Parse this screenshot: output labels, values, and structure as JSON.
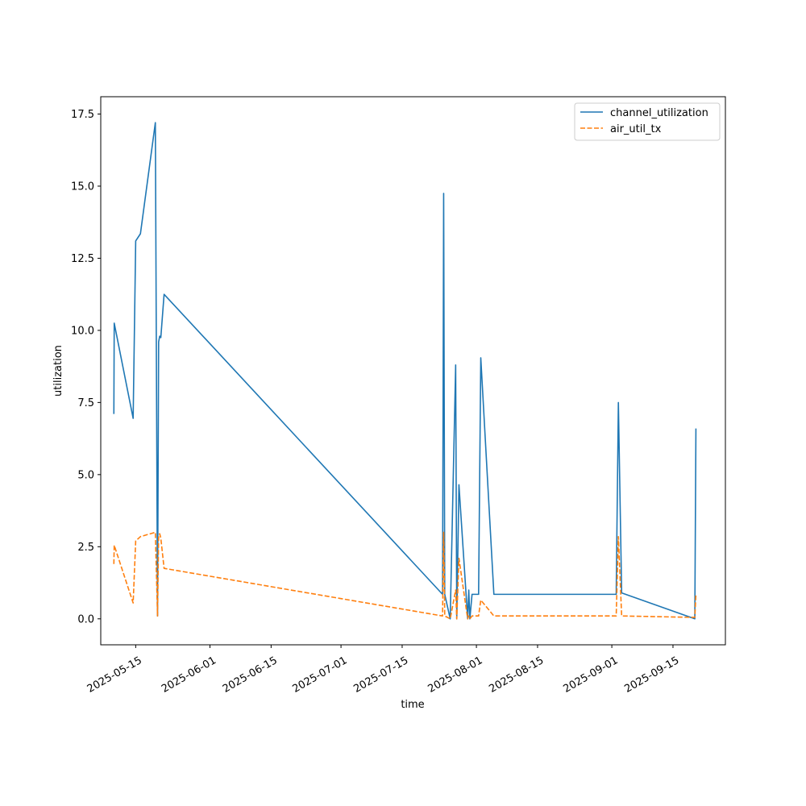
{
  "chart_data": {
    "type": "line",
    "title": "",
    "xlabel": "time",
    "ylabel": "utilization",
    "x_type": "date",
    "xlim": [
      "2025-05-07",
      "2025-09-27"
    ],
    "ylim": [
      -0.9,
      18.1
    ],
    "yticks": [
      0.0,
      2.5,
      5.0,
      7.5,
      10.0,
      12.5,
      15.0,
      17.5
    ],
    "ytick_labels": [
      "0.0",
      "2.5",
      "5.0",
      "7.5",
      "10.0",
      "12.5",
      "15.0",
      "17.5"
    ],
    "xticks": [
      "2025-05-15",
      "2025-06-01",
      "2025-06-15",
      "2025-07-01",
      "2025-07-15",
      "2025-08-01",
      "2025-08-15",
      "2025-09-01",
      "2025-09-15"
    ],
    "xtick_labels": [
      "2025-05-15",
      "2025-06-01",
      "2025-06-15",
      "2025-07-01",
      "2025-07-15",
      "2025-08-01",
      "2025-08-15",
      "2025-09-01",
      "2025-09-15"
    ],
    "grid": false,
    "legend": "upper-right",
    "series": [
      {
        "name": "channel_utilization",
        "color": "#1f77b4",
        "style": "solid",
        "points": [
          [
            "2025-05-10 00:00",
            7.1
          ],
          [
            "2025-05-10 02:00",
            10.25
          ],
          [
            "2025-05-14 10:00",
            6.95
          ],
          [
            "2025-05-15 00:00",
            13.1
          ],
          [
            "2025-05-16 02:00",
            13.35
          ],
          [
            "2025-05-19 12:00",
            17.2
          ],
          [
            "2025-05-20 00:00",
            0.1
          ],
          [
            "2025-05-20 06:00",
            9.6
          ],
          [
            "2025-05-20 12:00",
            9.8
          ],
          [
            "2025-05-20 18:00",
            9.75
          ],
          [
            "2025-05-21 12:00",
            11.25
          ],
          [
            "2025-07-24 06:00",
            0.85
          ],
          [
            "2025-07-24 12:00",
            14.75
          ],
          [
            "2025-07-24 18:00",
            0.85
          ],
          [
            "2025-07-26 00:00",
            0.0
          ],
          [
            "2025-07-27 06:00",
            8.8
          ],
          [
            "2025-07-27 12:00",
            0.0
          ],
          [
            "2025-07-28 00:00",
            4.65
          ],
          [
            "2025-07-30 00:00",
            0.0
          ],
          [
            "2025-07-30 06:00",
            1.0
          ],
          [
            "2025-07-30 12:00",
            0.0
          ],
          [
            "2025-07-31 00:00",
            0.85
          ],
          [
            "2025-08-01 12:00",
            0.85
          ],
          [
            "2025-08-02 00:00",
            9.05
          ],
          [
            "2025-08-05 00:00",
            0.85
          ],
          [
            "2025-09-02 00:00",
            0.85
          ],
          [
            "2025-09-02 12:00",
            7.5
          ],
          [
            "2025-09-03 06:00",
            0.9
          ],
          [
            "2025-09-20 00:00",
            0.0
          ],
          [
            "2025-09-20 06:00",
            6.6
          ]
        ]
      },
      {
        "name": "air_util_tx",
        "color": "#ff7f0e",
        "style": "dashed",
        "points": [
          [
            "2025-05-10 00:00",
            1.9
          ],
          [
            "2025-05-10 02:00",
            2.55
          ],
          [
            "2025-05-14 10:00",
            0.55
          ],
          [
            "2025-05-15 00:00",
            2.7
          ],
          [
            "2025-05-16 02:00",
            2.85
          ],
          [
            "2025-05-19 12:00",
            3.0
          ],
          [
            "2025-05-20 00:00",
            0.1
          ],
          [
            "2025-05-20 06:00",
            2.9
          ],
          [
            "2025-05-20 12:00",
            2.95
          ],
          [
            "2025-05-20 18:00",
            2.8
          ],
          [
            "2025-05-21 12:00",
            1.75
          ],
          [
            "2025-07-24 06:00",
            0.1
          ],
          [
            "2025-07-24 12:00",
            3.0
          ],
          [
            "2025-07-24 18:00",
            0.1
          ],
          [
            "2025-07-26 00:00",
            0.0
          ],
          [
            "2025-07-27 06:00",
            1.0
          ],
          [
            "2025-07-27 12:00",
            0.0
          ],
          [
            "2025-07-28 00:00",
            2.1
          ],
          [
            "2025-07-30 00:00",
            0.0
          ],
          [
            "2025-07-30 06:00",
            0.1
          ],
          [
            "2025-07-30 12:00",
            0.0
          ],
          [
            "2025-07-31 00:00",
            0.1
          ],
          [
            "2025-08-01 12:00",
            0.1
          ],
          [
            "2025-08-02 00:00",
            0.65
          ],
          [
            "2025-08-05 00:00",
            0.1
          ],
          [
            "2025-09-02 00:00",
            0.1
          ],
          [
            "2025-09-02 12:00",
            2.85
          ],
          [
            "2025-09-03 06:00",
            0.1
          ],
          [
            "2025-09-20 00:00",
            0.05
          ],
          [
            "2025-09-20 06:00",
            0.85
          ]
        ]
      }
    ]
  }
}
